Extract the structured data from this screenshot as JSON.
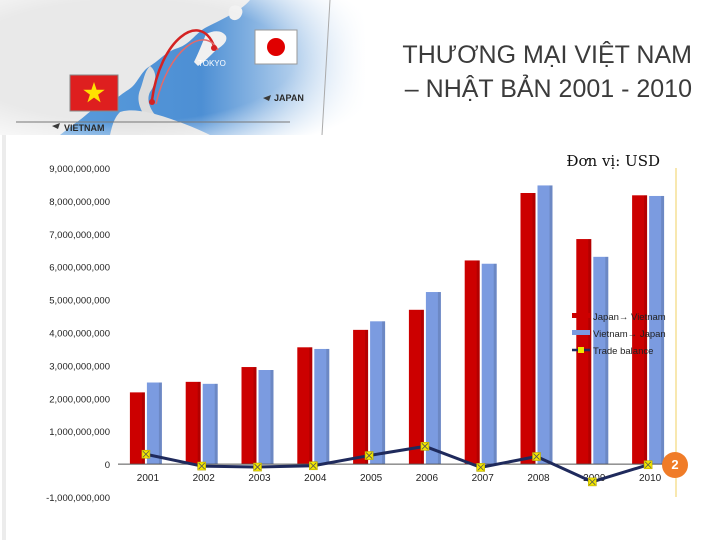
{
  "header": {
    "title_line1": "THƯƠNG MẠI VIỆT NAM",
    "title_line2": "– NHẬT BẢN 2001 - 2010",
    "map_labels": {
      "tokyo": "TOKYO",
      "japan": "JAPAN",
      "vietnam": "VIETNAM"
    },
    "unit": "Đơn vị: USD",
    "page_number": "2"
  },
  "colors": {
    "japan_to_vietnam": "#cc0000",
    "vietnam_to_japan": "#7b9be0",
    "trade_balance_line": "#1f2a5c",
    "trade_balance_marker": "#f2e600",
    "badge": "#f07c28"
  },
  "chart_data": {
    "type": "bar",
    "categories": [
      "2001",
      "2002",
      "2003",
      "2004",
      "2005",
      "2006",
      "2007",
      "2008",
      "2009",
      "2010"
    ],
    "series": [
      {
        "name": "Japan→ Vietnam",
        "values": [
          2180000000,
          2500000000,
          2950000000,
          3550000000,
          4080000000,
          4690000000,
          6190000000,
          8240000000,
          6840000000,
          8170000000
        ]
      },
      {
        "name": "Vietnam→ Japan",
        "values": [
          2480000000,
          2440000000,
          2860000000,
          3500000000,
          4340000000,
          5230000000,
          6090000000,
          8470000000,
          6300000000,
          8150000000
        ]
      }
    ],
    "line_series": {
      "name": "Trade balance",
      "values": [
        300000000,
        -60000000,
        -90000000,
        -50000000,
        260000000,
        540000000,
        -100000000,
        230000000,
        -540000000,
        -20000000
      ]
    },
    "ylim": [
      -1000000000,
      9000000000
    ],
    "yticks": [
      {
        "value": 9000000000,
        "label": "9,000,000,000"
      },
      {
        "value": 8000000000,
        "label": "8,000,000,000"
      },
      {
        "value": 7000000000,
        "label": "7,000,000,000"
      },
      {
        "value": 6000000000,
        "label": "6,000,000,000"
      },
      {
        "value": 5000000000,
        "label": "5,000,000,000"
      },
      {
        "value": 4000000000,
        "label": "4,000,000,000"
      },
      {
        "value": 3000000000,
        "label": "3,000,000,000"
      },
      {
        "value": 2000000000,
        "label": "2,000,000,000"
      },
      {
        "value": 1000000000,
        "label": "1,000,000,000"
      },
      {
        "value": 0,
        "label": "0"
      },
      {
        "value": -1000000000,
        "label": "-1,000,000,000"
      }
    ],
    "legend": {
      "placement": "right",
      "items": [
        {
          "kind": "bar",
          "label": "Japan→ Vietnam"
        },
        {
          "kind": "bar",
          "label": "Vietnam→ Japan"
        },
        {
          "kind": "line",
          "label": "Trade balance"
        }
      ]
    },
    "grid": false,
    "xlabel": "",
    "ylabel": ""
  }
}
